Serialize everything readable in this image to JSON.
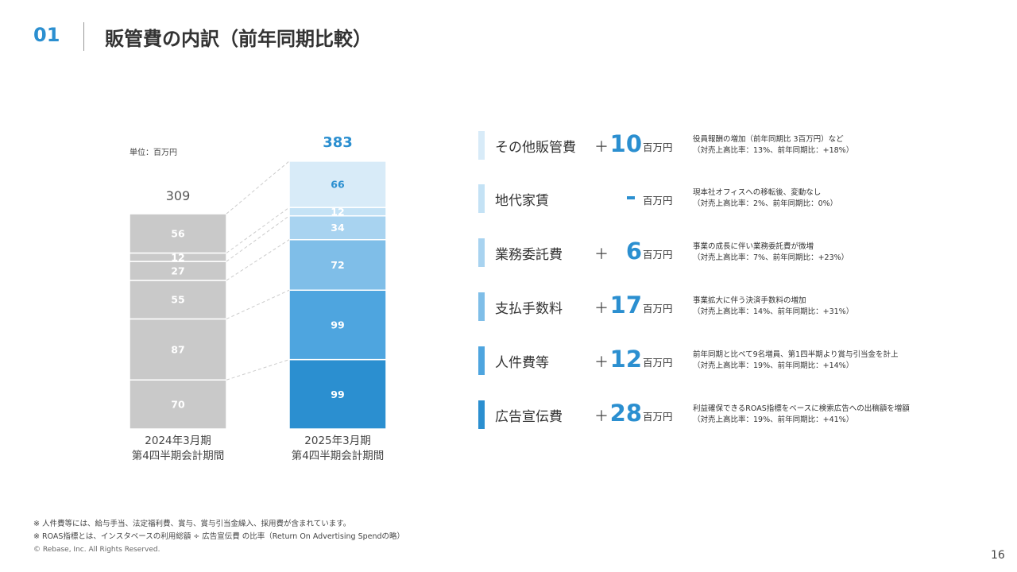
{
  "header": {
    "number": "01",
    "title": "販管費の内訳（前年同期比較）"
  },
  "unit_label": "単位：百万円",
  "colors": {
    "accent": "#2b8fd0",
    "prev_bar": "#c9c9c9",
    "current_segments": [
      "#2b8fd0",
      "#4ea5df",
      "#7fbee8",
      "#a8d3f0",
      "#c4e2f5",
      "#d8ebf8"
    ],
    "connector": "#cccccc"
  },
  "chart_data": {
    "type": "stacked-bar",
    "title": "販管費の内訳",
    "ylabel": "百万円",
    "categories": [
      {
        "line1": "2024年3月期",
        "line2": "第4四半期会計期間"
      },
      {
        "line1": "2025年3月期",
        "line2": "第4四半期会計期間"
      }
    ],
    "series": [
      {
        "name": "広告宣伝費",
        "values": [
          70,
          99
        ]
      },
      {
        "name": "人件費等",
        "values": [
          87,
          99
        ]
      },
      {
        "name": "支払手数料",
        "values": [
          55,
          72
        ]
      },
      {
        "name": "業務委託費",
        "values": [
          27,
          34
        ]
      },
      {
        "name": "地代家賃",
        "values": [
          12,
          12
        ]
      },
      {
        "name": "その他販管費",
        "values": [
          56,
          66
        ]
      }
    ],
    "totals": [
      309,
      383
    ],
    "ylim": [
      0,
      383
    ]
  },
  "breakdown": [
    {
      "category": "その他販管費",
      "sign": "＋",
      "value": "10",
      "unit": "百万円",
      "note1": "役員報酬の増加（前年同期比 3百万円）など",
      "note2": "（対売上高比率：13%、前年同期比：+18%）",
      "color": "#d8ebf8"
    },
    {
      "category": "地代家賃",
      "sign": "",
      "value": "",
      "unit": "百万円",
      "note1": "現本社オフィスへの移転後、変動なし",
      "note2": "（対売上高比率：2%、前年同期比：0%）",
      "color": "#c4e2f5",
      "dash": true
    },
    {
      "category": "業務委託費",
      "sign": "＋",
      "value": "6",
      "unit": "百万円",
      "note1": "事業の成長に伴い業務委託費が微増",
      "note2": "（対売上高比率：7%、前年同期比：+23%）",
      "color": "#a8d3f0"
    },
    {
      "category": "支払手数料",
      "sign": "＋",
      "value": "17",
      "unit": "百万円",
      "note1": "事業拡大に伴う決済手数料の増加",
      "note2": "（対売上高比率：14%、前年同期比：+31%）",
      "color": "#7fbee8"
    },
    {
      "category": "人件費等",
      "sign": "＋",
      "value": "12",
      "unit": "百万円",
      "note1": "前年同期と比べて9名増員、第1四半期より賞与引当金を計上",
      "note2": "（対売上高比率：19%、前年同期比：+14%）",
      "color": "#4ea5df"
    },
    {
      "category": "広告宣伝費",
      "sign": "＋",
      "value": "28",
      "unit": "百万円",
      "note1": "利益確保できるROAS指標をベースに検索広告への出稿額を増額",
      "note2": "（対売上高比率：19%、前年同期比：+41%）",
      "color": "#2b8fd0"
    }
  ],
  "footnotes": [
    "※  人件費等には、給与手当、法定福利費、賞与、賞与引当金繰入、採用費が含まれています。",
    "※  ROAS指標とは、インスタベースの利用総額 ÷ 広告宣伝費 の比率（Return On Advertising Spendの略）"
  ],
  "copyright": "© Rebase, Inc. All Rights Reserved.",
  "page_number": "16"
}
